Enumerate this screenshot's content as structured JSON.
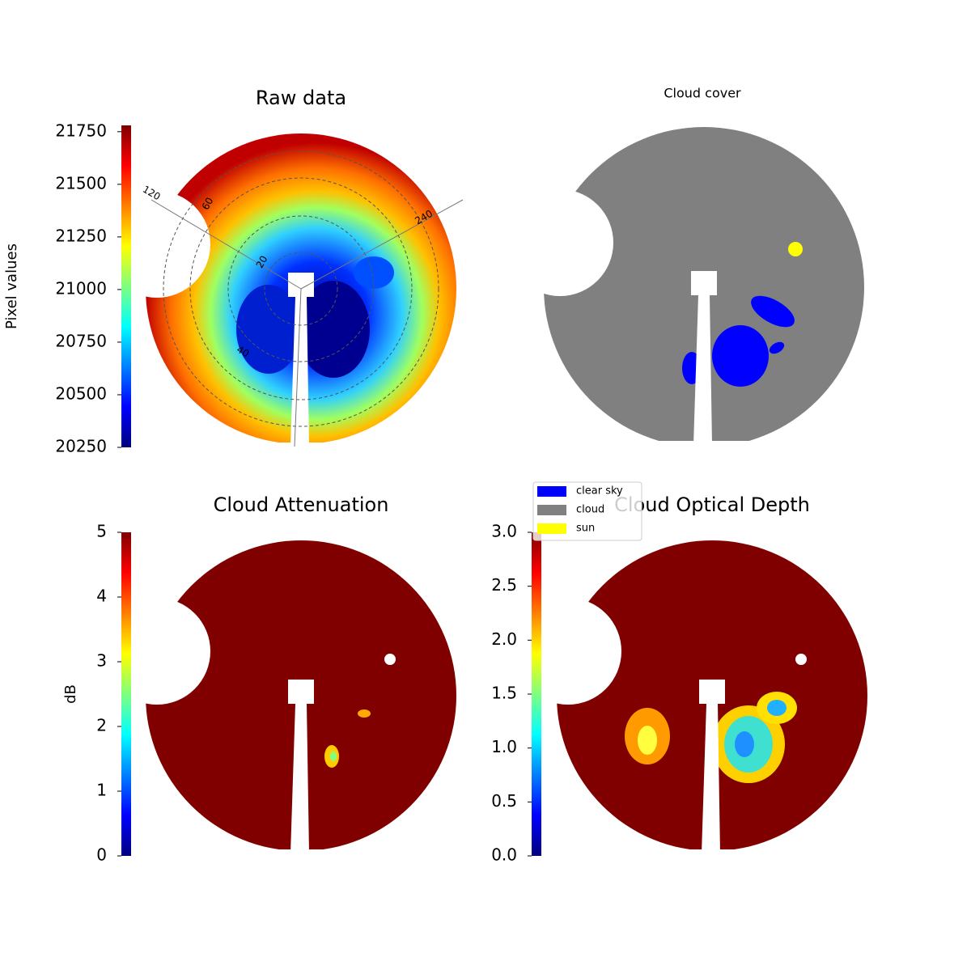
{
  "chart_data": [
    {
      "type": "image",
      "title": "Raw data",
      "colormap": "jet",
      "colorbar": {
        "label": "Pixel values",
        "ylim": [
          20250,
          21780
        ],
        "yticks": [
          20250,
          20500,
          20750,
          21000,
          21250,
          21500,
          21750
        ]
      },
      "annotations": [
        "120",
        "60",
        "20",
        "40",
        "240"
      ]
    },
    {
      "type": "image",
      "title": "Cloud cover",
      "legend": [
        {
          "name": "clear sky",
          "color": "#0000ff"
        },
        {
          "name": "cloud",
          "color": "#808080"
        },
        {
          "name": "sun",
          "color": "#ffff00"
        }
      ]
    },
    {
      "type": "image",
      "title": "Cloud Attenuation",
      "colormap": "jet",
      "colorbar": {
        "label": "dB",
        "ylim": [
          0,
          5
        ],
        "yticks": [
          0,
          1,
          2,
          3,
          4,
          5
        ]
      }
    },
    {
      "type": "image",
      "title": "Cloud Optical Depth",
      "colormap": "jet",
      "colorbar": {
        "ylim": [
          0,
          3
        ],
        "yticks": [
          {
            "value": 0,
            "label": "0.0"
          },
          {
            "value": 0.5,
            "label": "0.5"
          },
          {
            "value": 1,
            "label": "1.0"
          },
          {
            "value": 1.5,
            "label": "1.5"
          },
          {
            "value": 2,
            "label": "2.0"
          },
          {
            "value": 2.5,
            "label": "2.5"
          },
          {
            "value": 3,
            "label": "3.0"
          }
        ]
      }
    }
  ]
}
